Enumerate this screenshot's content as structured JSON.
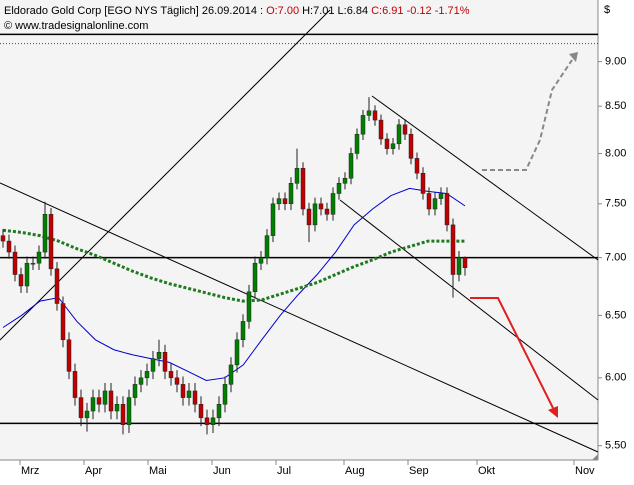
{
  "chart_data": {
    "type": "candlestick",
    "title": "Eldorado Gold Corp [EGO NYS  Täglich] 26.09.2014 :",
    "quote": {
      "open_label": "O:7.00",
      "high_label": "H:7.01",
      "low_label": "L:6.84",
      "close_label": "C:6.91 -0.12 -1.71%"
    },
    "source": "© www.tradesignalonline.com",
    "currency": "$",
    "categories": [
      "Mrz",
      "Apr",
      "Mai",
      "Jun",
      "Jul",
      "Aug",
      "Sep",
      "Okt",
      "Nov"
    ],
    "log_scale": true,
    "ylim": [
      5.4,
      9.74
    ],
    "yticks": [
      {
        "value": 9,
        "label": "9.00"
      },
      {
        "value": 8.5,
        "label": "8.50"
      },
      {
        "value": 8,
        "label": "8.00"
      },
      {
        "value": 7.5,
        "label": "7.50"
      },
      {
        "value": 7,
        "label": "7.00"
      },
      {
        "value": 6.5,
        "label": "6.50"
      },
      {
        "value": 6,
        "label": "6.00"
      },
      {
        "value": 5.5,
        "label": "5.50"
      }
    ],
    "up_color": "#008000",
    "down_color": "#c00000",
    "open": [
      7.2,
      7.15,
      7.05,
      6.85,
      6.75,
      6.95,
      6.95,
      7.05,
      7.4,
      6.9,
      6.6,
      6.3,
      6.05,
      5.85,
      5.7,
      5.75,
      5.85,
      5.8,
      5.9,
      5.75,
      5.8,
      5.65,
      5.85,
      5.95,
      6.0,
      6.05,
      6.15,
      6.2,
      6.05,
      6.0,
      5.95,
      5.85,
      5.9,
      5.8,
      5.7,
      5.65,
      5.7,
      5.8,
      5.95,
      6.1,
      6.3,
      6.45,
      6.7,
      6.95,
      7.0,
      7.2,
      7.5,
      7.55,
      7.5,
      7.7,
      7.85,
      7.45,
      7.3,
      7.5,
      7.45,
      7.4,
      7.6,
      7.7,
      7.75,
      8.0,
      8.2,
      8.4,
      8.45,
      8.35,
      8.15,
      8.05,
      8.1,
      8.3,
      8.2,
      7.95,
      7.8,
      7.6,
      7.45,
      7.55,
      7.6,
      7.3,
      6.85,
      7.0
    ],
    "high": [
      7.26,
      7.21,
      7.11,
      6.91,
      7.01,
      7.01,
      7.11,
      7.52,
      7.46,
      6.96,
      6.66,
      6.36,
      6.11,
      5.91,
      5.81,
      5.91,
      5.91,
      5.96,
      5.96,
      5.86,
      5.86,
      5.91,
      6.01,
      6.06,
      6.11,
      6.21,
      6.3,
      6.26,
      6.11,
      6.06,
      6.01,
      5.96,
      5.96,
      5.86,
      5.76,
      5.76,
      5.86,
      6.01,
      6.16,
      6.36,
      6.51,
      6.76,
      7.01,
      7.06,
      7.26,
      7.56,
      7.61,
      7.61,
      7.76,
      8.05,
      7.91,
      7.51,
      7.56,
      7.56,
      7.51,
      7.66,
      7.76,
      7.81,
      8.06,
      8.26,
      8.46,
      8.6,
      8.51,
      8.41,
      8.21,
      8.16,
      8.36,
      8.36,
      8.26,
      8.01,
      7.86,
      7.66,
      7.61,
      7.66,
      7.66,
      7.36,
      7.06,
      7.01
    ],
    "low": [
      7.09,
      6.99,
      6.79,
      6.69,
      6.69,
      6.89,
      6.89,
      6.99,
      6.84,
      6.54,
      6.24,
      5.99,
      5.79,
      5.64,
      5.6,
      5.69,
      5.74,
      5.74,
      5.69,
      5.69,
      5.58,
      5.59,
      5.79,
      5.89,
      5.94,
      5.99,
      6.09,
      5.99,
      5.94,
      5.89,
      5.79,
      5.79,
      5.74,
      5.64,
      5.58,
      5.59,
      5.64,
      5.74,
      5.89,
      6.04,
      6.24,
      6.39,
      6.64,
      6.89,
      6.94,
      7.14,
      7.44,
      7.44,
      7.44,
      7.64,
      7.39,
      7.14,
      7.24,
      7.39,
      7.34,
      7.34,
      7.54,
      7.64,
      7.69,
      7.94,
      8.14,
      8.34,
      8.29,
      8.09,
      7.99,
      7.99,
      8.04,
      8.14,
      7.89,
      7.74,
      7.54,
      7.39,
      7.39,
      7.49,
      7.24,
      6.65,
      6.79,
      6.84
    ],
    "close": [
      7.15,
      7.05,
      6.85,
      6.75,
      6.95,
      6.95,
      7.05,
      7.4,
      6.9,
      6.6,
      6.3,
      6.05,
      5.85,
      5.7,
      5.75,
      5.85,
      5.8,
      5.9,
      5.75,
      5.8,
      5.65,
      5.85,
      5.95,
      6.0,
      6.05,
      6.15,
      6.2,
      6.05,
      6.0,
      5.95,
      5.85,
      5.9,
      5.8,
      5.7,
      5.65,
      5.7,
      5.8,
      5.95,
      6.1,
      6.3,
      6.45,
      6.7,
      6.95,
      7.0,
      7.2,
      7.5,
      7.55,
      7.5,
      7.7,
      7.85,
      7.45,
      7.3,
      7.5,
      7.45,
      7.4,
      7.6,
      7.7,
      7.75,
      8.0,
      8.2,
      8.4,
      8.45,
      8.35,
      8.15,
      8.05,
      8.1,
      8.3,
      8.2,
      7.95,
      7.8,
      7.6,
      7.45,
      7.55,
      7.6,
      7.3,
      6.85,
      7.0,
      6.91
    ],
    "averages": [
      {
        "color": "#0000cc",
        "style": "solid",
        "values": [
          6.4,
          6.5,
          6.62,
          6.65,
          6.45,
          6.3,
          6.22,
          6.18,
          6.15,
          6.12,
          6.05,
          5.98,
          6.0,
          6.1,
          6.3,
          6.5,
          6.68,
          6.85,
          7.05,
          7.3,
          7.45,
          7.58,
          7.65,
          7.62,
          7.6,
          7.48
        ]
      },
      {
        "color": "#1e7a1e",
        "style": "dotted",
        "values": [
          7.25,
          7.23,
          7.2,
          7.15,
          7.08,
          7.02,
          6.95,
          6.88,
          6.82,
          6.77,
          6.73,
          6.69,
          6.65,
          6.62,
          6.63,
          6.68,
          6.73,
          6.78,
          6.85,
          6.92,
          6.98,
          7.05,
          7.1,
          7.15,
          7.15,
          7.15
        ]
      }
    ],
    "hlines": [
      {
        "value": 9.32,
        "color": "#000000",
        "style": "solid"
      },
      {
        "value": 9.21,
        "color": "#3333cc",
        "style": "dotted"
      },
      {
        "value": 7.0,
        "color": "#000000",
        "style": "solid"
      },
      {
        "value": 5.66,
        "color": "#000000",
        "style": "solid"
      }
    ]
  }
}
